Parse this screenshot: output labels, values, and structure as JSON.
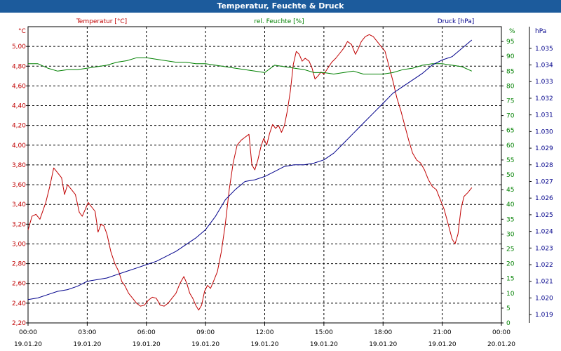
{
  "window": {
    "title": "Temperatur, Feuchte & Druck"
  },
  "chart_data": {
    "type": "line",
    "title": "Temperatur, Feuchte & Druck",
    "grid": true,
    "x": {
      "range": [
        "19.01.20 00:00",
        "20.01.20 00:00"
      ],
      "ticks": [
        {
          "time": "00:00",
          "date": "19.01.20"
        },
        {
          "time": "03:00",
          "date": "19.01.20"
        },
        {
          "time": "06:00",
          "date": "19.01.20"
        },
        {
          "time": "09:00",
          "date": "19.01.20"
        },
        {
          "time": "12:00",
          "date": "19.01.20"
        },
        {
          "time": "15:00",
          "date": "19.01.20"
        },
        {
          "time": "18:00",
          "date": "19.01.20"
        },
        {
          "time": "21:00",
          "date": "19.01.20"
        },
        {
          "time": "00:00",
          "date": "20.01.20"
        }
      ]
    },
    "axes": {
      "temperature": {
        "label": "Temperatur [°C]",
        "unit": "°C",
        "color": "#c00000",
        "side": "left",
        "range": [
          2.2,
          5.2
        ],
        "ticks": [
          "2,20",
          "2,40",
          "2,60",
          "2,80",
          "3,00",
          "3,20",
          "3,40",
          "3,60",
          "3,80",
          "4,00",
          "4,20",
          "4,40",
          "4,60",
          "4,80",
          "5,00"
        ]
      },
      "humidity": {
        "label": "rel. Feuchte [%]",
        "unit": "%",
        "color": "#008000",
        "side": "right-inner",
        "range": [
          0,
          100
        ],
        "ticks": [
          "0",
          "5",
          "10",
          "15",
          "20",
          "25",
          "30",
          "35",
          "40",
          "45",
          "50",
          "55",
          "60",
          "65",
          "70",
          "75",
          "80",
          "85",
          "90",
          "95"
        ]
      },
      "pressure": {
        "label": "Druck [hPa]",
        "unit": "hPa",
        "color": "#00008b",
        "side": "right-outer",
        "range": [
          1.0185,
          1.0363
        ],
        "ticks": [
          "1.019",
          "1.020",
          "1.021",
          "1.022",
          "1.023",
          "1.024",
          "1.025",
          "1.026",
          "1.027",
          "1.028",
          "1.029",
          "1.030",
          "1.031",
          "1.032",
          "1.033",
          "1.034",
          "1.035"
        ]
      }
    },
    "series": [
      {
        "name": "Temperatur [°C]",
        "axis": "temperature",
        "color": "#c00000",
        "points": [
          [
            0,
            3.14
          ],
          [
            0.2,
            3.28
          ],
          [
            0.4,
            3.3
          ],
          [
            0.6,
            3.25
          ],
          [
            0.9,
            3.42
          ],
          [
            1.1,
            3.58
          ],
          [
            1.3,
            3.77
          ],
          [
            1.5,
            3.72
          ],
          [
            1.7,
            3.67
          ],
          [
            1.85,
            3.5
          ],
          [
            2.0,
            3.6
          ],
          [
            2.2,
            3.55
          ],
          [
            2.4,
            3.5
          ],
          [
            2.6,
            3.32
          ],
          [
            2.75,
            3.28
          ],
          [
            2.9,
            3.35
          ],
          [
            3.05,
            3.42
          ],
          [
            3.2,
            3.38
          ],
          [
            3.4,
            3.33
          ],
          [
            3.55,
            3.12
          ],
          [
            3.7,
            3.2
          ],
          [
            3.85,
            3.18
          ],
          [
            4.0,
            3.1
          ],
          [
            4.2,
            2.92
          ],
          [
            4.4,
            2.8
          ],
          [
            4.6,
            2.72
          ],
          [
            4.75,
            2.62
          ],
          [
            4.9,
            2.58
          ],
          [
            5.1,
            2.5
          ],
          [
            5.3,
            2.45
          ],
          [
            5.5,
            2.4
          ],
          [
            5.7,
            2.37
          ],
          [
            5.9,
            2.38
          ],
          [
            6.1,
            2.43
          ],
          [
            6.3,
            2.46
          ],
          [
            6.5,
            2.45
          ],
          [
            6.7,
            2.38
          ],
          [
            6.9,
            2.37
          ],
          [
            7.1,
            2.4
          ],
          [
            7.3,
            2.45
          ],
          [
            7.5,
            2.5
          ],
          [
            7.7,
            2.6
          ],
          [
            7.9,
            2.67
          ],
          [
            8.05,
            2.6
          ],
          [
            8.2,
            2.5
          ],
          [
            8.35,
            2.45
          ],
          [
            8.5,
            2.38
          ],
          [
            8.65,
            2.33
          ],
          [
            8.8,
            2.38
          ],
          [
            8.95,
            2.52
          ],
          [
            9.1,
            2.58
          ],
          [
            9.25,
            2.55
          ],
          [
            9.4,
            2.62
          ],
          [
            9.6,
            2.72
          ],
          [
            9.8,
            2.92
          ],
          [
            10.0,
            3.2
          ],
          [
            10.2,
            3.55
          ],
          [
            10.4,
            3.82
          ],
          [
            10.6,
            4.0
          ],
          [
            10.8,
            4.05
          ],
          [
            11.0,
            4.08
          ],
          [
            11.2,
            4.11
          ],
          [
            11.35,
            3.8
          ],
          [
            11.5,
            3.75
          ],
          [
            11.65,
            3.85
          ],
          [
            11.8,
            3.98
          ],
          [
            11.95,
            4.07
          ],
          [
            12.1,
            4.0
          ],
          [
            12.25,
            4.12
          ],
          [
            12.4,
            4.21
          ],
          [
            12.55,
            4.17
          ],
          [
            12.7,
            4.2
          ],
          [
            12.85,
            4.13
          ],
          [
            13.0,
            4.2
          ],
          [
            13.15,
            4.35
          ],
          [
            13.3,
            4.55
          ],
          [
            13.45,
            4.82
          ],
          [
            13.6,
            4.95
          ],
          [
            13.75,
            4.92
          ],
          [
            13.9,
            4.85
          ],
          [
            14.05,
            4.88
          ],
          [
            14.25,
            4.85
          ],
          [
            14.4,
            4.78
          ],
          [
            14.55,
            4.67
          ],
          [
            14.7,
            4.7
          ],
          [
            14.85,
            4.74
          ],
          [
            15.0,
            4.72
          ],
          [
            15.2,
            4.78
          ],
          [
            15.4,
            4.84
          ],
          [
            15.6,
            4.88
          ],
          [
            15.8,
            4.93
          ],
          [
            16.0,
            4.98
          ],
          [
            16.2,
            5.05
          ],
          [
            16.4,
            5.02
          ],
          [
            16.6,
            4.92
          ],
          [
            16.75,
            4.98
          ],
          [
            16.9,
            5.05
          ],
          [
            17.1,
            5.1
          ],
          [
            17.3,
            5.12
          ],
          [
            17.5,
            5.1
          ],
          [
            17.7,
            5.05
          ],
          [
            17.9,
            5.0
          ],
          [
            18.1,
            4.95
          ],
          [
            18.3,
            4.8
          ],
          [
            18.5,
            4.65
          ],
          [
            18.7,
            4.48
          ],
          [
            18.9,
            4.35
          ],
          [
            19.1,
            4.2
          ],
          [
            19.3,
            4.05
          ],
          [
            19.5,
            3.92
          ],
          [
            19.7,
            3.85
          ],
          [
            19.9,
            3.82
          ],
          [
            20.1,
            3.75
          ],
          [
            20.3,
            3.65
          ],
          [
            20.5,
            3.58
          ],
          [
            20.7,
            3.55
          ],
          [
            20.9,
            3.45
          ],
          [
            21.1,
            3.35
          ],
          [
            21.3,
            3.2
          ],
          [
            21.5,
            3.05
          ],
          [
            21.65,
            3.0
          ],
          [
            21.8,
            3.1
          ],
          [
            21.95,
            3.35
          ],
          [
            22.1,
            3.48
          ],
          [
            22.3,
            3.52
          ],
          [
            22.5,
            3.57
          ]
        ]
      },
      {
        "name": "rel. Feuchte [%]",
        "axis": "humidity",
        "color": "#008000",
        "points": [
          [
            0,
            87.5
          ],
          [
            0.5,
            87.5
          ],
          [
            1.0,
            86.0
          ],
          [
            1.5,
            85.0
          ],
          [
            2.0,
            85.5
          ],
          [
            2.5,
            85.5
          ],
          [
            3.0,
            86.0
          ],
          [
            3.5,
            86.5
          ],
          [
            4.0,
            87.0
          ],
          [
            4.5,
            88.0
          ],
          [
            5.0,
            88.5
          ],
          [
            5.5,
            89.5
          ],
          [
            6.0,
            89.5
          ],
          [
            6.5,
            89.0
          ],
          [
            7.0,
            88.5
          ],
          [
            7.5,
            88.0
          ],
          [
            8.0,
            88.0
          ],
          [
            8.5,
            87.5
          ],
          [
            9.0,
            87.5
          ],
          [
            9.5,
            87.0
          ],
          [
            10.0,
            86.5
          ],
          [
            10.5,
            86.0
          ],
          [
            11.0,
            85.5
          ],
          [
            11.5,
            85.0
          ],
          [
            12.0,
            84.5
          ],
          [
            12.5,
            87.0
          ],
          [
            13.0,
            86.5
          ],
          [
            13.5,
            86.0
          ],
          [
            14.0,
            85.5
          ],
          [
            14.5,
            84.5
          ],
          [
            15.0,
            84.5
          ],
          [
            15.5,
            84.0
          ],
          [
            16.0,
            84.5
          ],
          [
            16.5,
            85.0
          ],
          [
            17.0,
            84.0
          ],
          [
            17.5,
            84.0
          ],
          [
            18.0,
            84.0
          ],
          [
            18.5,
            84.5
          ],
          [
            19.0,
            85.5
          ],
          [
            19.5,
            86.0
          ],
          [
            20.0,
            87.0
          ],
          [
            20.5,
            87.5
          ],
          [
            21.0,
            87.5
          ],
          [
            21.5,
            87.0
          ],
          [
            22.0,
            86.5
          ],
          [
            22.5,
            85.0
          ]
        ]
      },
      {
        "name": "Druck [hPa]",
        "axis": "pressure",
        "color": "#00008b",
        "points": [
          [
            0,
            1.0199
          ],
          [
            0.5,
            1.02
          ],
          [
            1.0,
            1.0202
          ],
          [
            1.5,
            1.0204
          ],
          [
            2.0,
            1.0205
          ],
          [
            2.5,
            1.0207
          ],
          [
            3.0,
            1.021
          ],
          [
            3.5,
            1.0211
          ],
          [
            4.0,
            1.0212
          ],
          [
            4.5,
            1.0214
          ],
          [
            5.0,
            1.0216
          ],
          [
            5.5,
            1.0218
          ],
          [
            6.0,
            1.022
          ],
          [
            6.5,
            1.0222
          ],
          [
            7.0,
            1.0225
          ],
          [
            7.5,
            1.0228
          ],
          [
            8.0,
            1.0232
          ],
          [
            8.5,
            1.0236
          ],
          [
            9.0,
            1.0241
          ],
          [
            9.5,
            1.0249
          ],
          [
            10.0,
            1.0259
          ],
          [
            10.5,
            1.0265
          ],
          [
            11.0,
            1.027
          ],
          [
            11.5,
            1.0271
          ],
          [
            12.0,
            1.0273
          ],
          [
            12.5,
            1.0276
          ],
          [
            13.0,
            1.0279
          ],
          [
            13.5,
            1.028
          ],
          [
            14.0,
            1.028
          ],
          [
            14.5,
            1.0281
          ],
          [
            15.0,
            1.0283
          ],
          [
            15.5,
            1.0287
          ],
          [
            16.0,
            1.0293
          ],
          [
            16.5,
            1.0299
          ],
          [
            17.0,
            1.0305
          ],
          [
            17.5,
            1.0311
          ],
          [
            18.0,
            1.0317
          ],
          [
            18.5,
            1.0323
          ],
          [
            19.0,
            1.0327
          ],
          [
            19.5,
            1.0331
          ],
          [
            20.0,
            1.0335
          ],
          [
            20.5,
            1.034
          ],
          [
            21.0,
            1.0343
          ],
          [
            21.5,
            1.0345
          ],
          [
            22.0,
            1.035
          ],
          [
            22.5,
            1.0355
          ]
        ]
      }
    ]
  }
}
